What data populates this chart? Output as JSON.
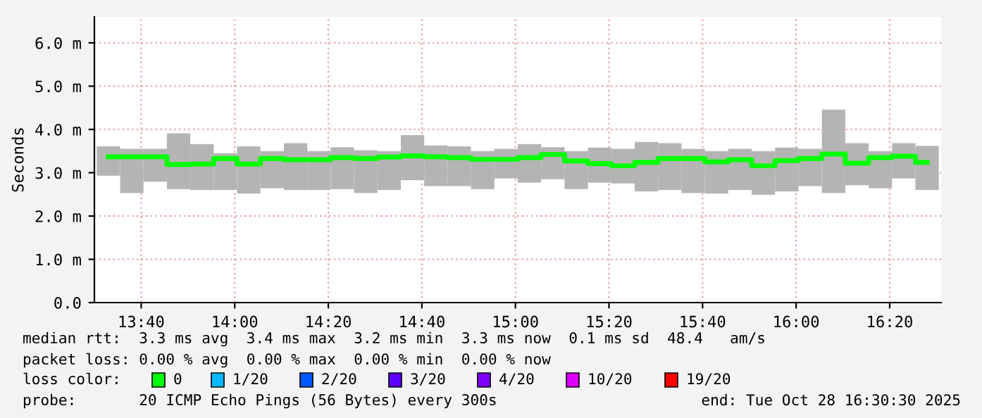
{
  "chart_data": {
    "type": "bar",
    "ylabel": "Seconds",
    "x": [
      "2025-10-28T13:33",
      "2025-10-28T13:38",
      "2025-10-28T13:43",
      "2025-10-28T13:48",
      "2025-10-28T13:53",
      "2025-10-28T13:58",
      "2025-10-28T14:03",
      "2025-10-28T14:08",
      "2025-10-28T14:13",
      "2025-10-28T14:18",
      "2025-10-28T14:23",
      "2025-10-28T14:28",
      "2025-10-28T14:33",
      "2025-10-28T14:38",
      "2025-10-28T14:43",
      "2025-10-28T14:48",
      "2025-10-28T14:53",
      "2025-10-28T14:58",
      "2025-10-28T15:03",
      "2025-10-28T15:08",
      "2025-10-28T15:13",
      "2025-10-28T15:18",
      "2025-10-28T15:23",
      "2025-10-28T15:28",
      "2025-10-28T15:33",
      "2025-10-28T15:38",
      "2025-10-28T15:43",
      "2025-10-28T15:48",
      "2025-10-28T15:53",
      "2025-10-28T15:58",
      "2025-10-28T16:03",
      "2025-10-28T16:08",
      "2025-10-28T16:13",
      "2025-10-28T16:18",
      "2025-10-28T16:23",
      "2025-10-28T16:28"
    ],
    "series": [
      {
        "color": "#b4b4b4",
        "base": [
          2.93,
          2.53,
          2.79,
          2.62,
          2.6,
          2.6,
          2.52,
          2.64,
          2.6,
          2.6,
          2.62,
          2.53,
          2.6,
          2.83,
          2.69,
          2.69,
          2.62,
          2.87,
          2.77,
          2.85,
          2.62,
          2.77,
          2.75,
          2.57,
          2.6,
          2.53,
          2.52,
          2.6,
          2.49,
          2.57,
          2.69,
          2.53,
          2.71,
          2.64,
          2.87,
          2.6
        ],
        "values": [
          0.68,
          1.02,
          0.76,
          1.29,
          1.06,
          0.85,
          1.09,
          0.86,
          1.08,
          0.9,
          0.97,
          0.99,
          0.9,
          1.04,
          0.94,
          0.92,
          0.88,
          0.68,
          0.89,
          0.74,
          0.88,
          0.81,
          0.8,
          1.14,
          1.08,
          1.02,
          0.98,
          0.95,
          1.01,
          1.01,
          0.86,
          1.93,
          0.97,
          0.86,
          0.81,
          1.02
        ]
      },
      {
        "type": "step",
        "name": "0",
        "color": "#00ff00",
        "values": [
          3.37,
          3.37,
          3.37,
          3.19,
          3.2,
          3.33,
          3.2,
          3.33,
          3.3,
          3.3,
          3.35,
          3.33,
          3.36,
          3.39,
          3.37,
          3.35,
          3.31,
          3.31,
          3.35,
          3.42,
          3.27,
          3.21,
          3.16,
          3.24,
          3.33,
          3.33,
          3.25,
          3.3,
          3.16,
          3.28,
          3.33,
          3.43,
          3.22,
          3.35,
          3.38,
          3.24
        ]
      },
      {
        "type": "step",
        "name": "1/20",
        "color": "#00b8ff",
        "values": [
          null,
          null,
          null,
          null,
          null,
          null,
          null,
          null,
          null,
          null,
          null,
          null,
          null,
          null,
          null,
          null,
          null,
          null,
          null,
          null,
          null,
          null,
          null,
          null,
          null,
          null,
          null,
          null,
          null,
          null,
          null,
          null,
          null,
          null,
          null,
          null
        ]
      },
      {
        "type": "step",
        "name": "2/20",
        "color": "#0059ff",
        "values": [
          null,
          null,
          null,
          null,
          null,
          null,
          null,
          null,
          null,
          null,
          null,
          null,
          null,
          null,
          null,
          null,
          null,
          null,
          null,
          null,
          null,
          null,
          null,
          null,
          null,
          null,
          null,
          null,
          null,
          null,
          null,
          null,
          null,
          null,
          null,
          null
        ]
      },
      {
        "type": "step",
        "name": "3/20",
        "color": "#5e00ff",
        "values": [
          null,
          null,
          null,
          null,
          null,
          null,
          null,
          null,
          null,
          null,
          null,
          null,
          null,
          null,
          null,
          null,
          null,
          null,
          null,
          null,
          null,
          null,
          null,
          null,
          null,
          null,
          null,
          null,
          null,
          null,
          null,
          null,
          null,
          null,
          null,
          null
        ]
      },
      {
        "type": "step",
        "name": "4/20",
        "color": "#7e00ff",
        "values": [
          null,
          null,
          null,
          null,
          null,
          null,
          null,
          null,
          null,
          null,
          null,
          null,
          null,
          null,
          null,
          null,
          null,
          null,
          null,
          null,
          null,
          null,
          null,
          null,
          null,
          null,
          null,
          null,
          null,
          null,
          null,
          null,
          null,
          null,
          null,
          null
        ]
      },
      {
        "type": "step",
        "name": "10/20",
        "color": "#dd00ff",
        "values": [
          null,
          null,
          null,
          null,
          null,
          null,
          null,
          null,
          null,
          null,
          null,
          null,
          null,
          null,
          null,
          null,
          null,
          null,
          null,
          null,
          null,
          null,
          null,
          null,
          null,
          null,
          null,
          null,
          null,
          null,
          null,
          null,
          null,
          null,
          null,
          null
        ]
      },
      {
        "type": "step",
        "name": "19/20",
        "color": "#ff0000",
        "values": [
          null,
          null,
          null,
          null,
          null,
          null,
          null,
          null,
          null,
          null,
          null,
          null,
          null,
          null,
          null,
          null,
          null,
          null,
          null,
          null,
          null,
          null,
          null,
          null,
          null,
          null,
          null,
          null,
          null,
          null,
          null,
          null,
          null,
          null,
          null,
          null
        ]
      }
    ],
    "legend": "bottom",
    "legend_title": "loss color:",
    "xlim": [
      "2025-10-28T13:30",
      "2025-10-28T16:31"
    ],
    "xticks": [
      {
        "value": "2025-10-28T13:40",
        "label": "13:40"
      },
      {
        "value": "2025-10-28T14:00",
        "label": "14:00"
      },
      {
        "value": "2025-10-28T14:20",
        "label": "14:20"
      },
      {
        "value": "2025-10-28T14:40",
        "label": "14:40"
      },
      {
        "value": "2025-10-28T15:00",
        "label": "15:00"
      },
      {
        "value": "2025-10-28T15:20",
        "label": "15:20"
      },
      {
        "value": "2025-10-28T15:40",
        "label": "15:40"
      },
      {
        "value": "2025-10-28T16:00",
        "label": "16:00"
      },
      {
        "value": "2025-10-28T16:20",
        "label": "16:20"
      }
    ],
    "ylim": [
      0,
      6.6
    ],
    "yticks": [
      {
        "value": 0,
        "label": "0.0"
      },
      {
        "value": 1,
        "label": "1.0 m"
      },
      {
        "value": 2,
        "label": "2.0 m"
      },
      {
        "value": 3,
        "label": "3.0 m"
      },
      {
        "value": 4,
        "label": "4.0 m"
      },
      {
        "value": 5,
        "label": "5.0 m"
      },
      {
        "value": 6,
        "label": "6.0 m"
      }
    ],
    "grid": true,
    "annotations": [
      "median rtt:  3.3 ms avg  3.4 ms max  3.2 ms min  3.3 ms now  0.1 ms sd  48.4   am/s",
      "packet loss: 0.00 % avg  0.00 % max  0.00 % min  0.00 % now",
      "probe:       20 ICMP Echo Pings (56 Bytes) every 300s",
      "end: Tue Oct 28 16:30:30 2025"
    ]
  }
}
